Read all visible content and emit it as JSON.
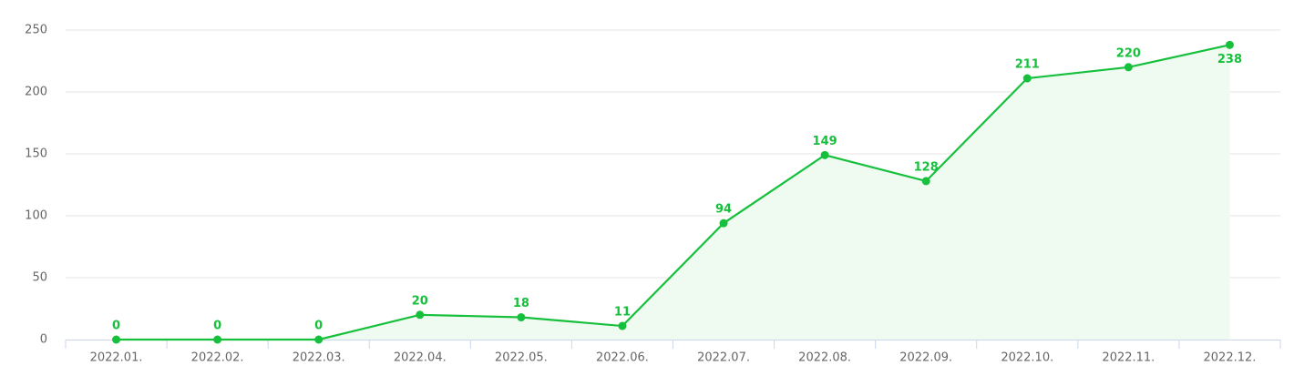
{
  "chart_data": {
    "type": "line",
    "categories": [
      "2022.01.",
      "2022.02.",
      "2022.03.",
      "2022.04.",
      "2022.05.",
      "2022.06.",
      "2022.07.",
      "2022.08.",
      "2022.09.",
      "2022.10.",
      "2022.11.",
      "2022.12."
    ],
    "values": [
      0,
      0,
      0,
      20,
      18,
      11,
      94,
      149,
      128,
      211,
      220,
      238
    ],
    "color": "#16c03c",
    "area_color": "#effaf1",
    "ylim": [
      0,
      250
    ],
    "yticks": [
      0,
      50,
      100,
      150,
      200,
      250
    ],
    "grid": true
  }
}
